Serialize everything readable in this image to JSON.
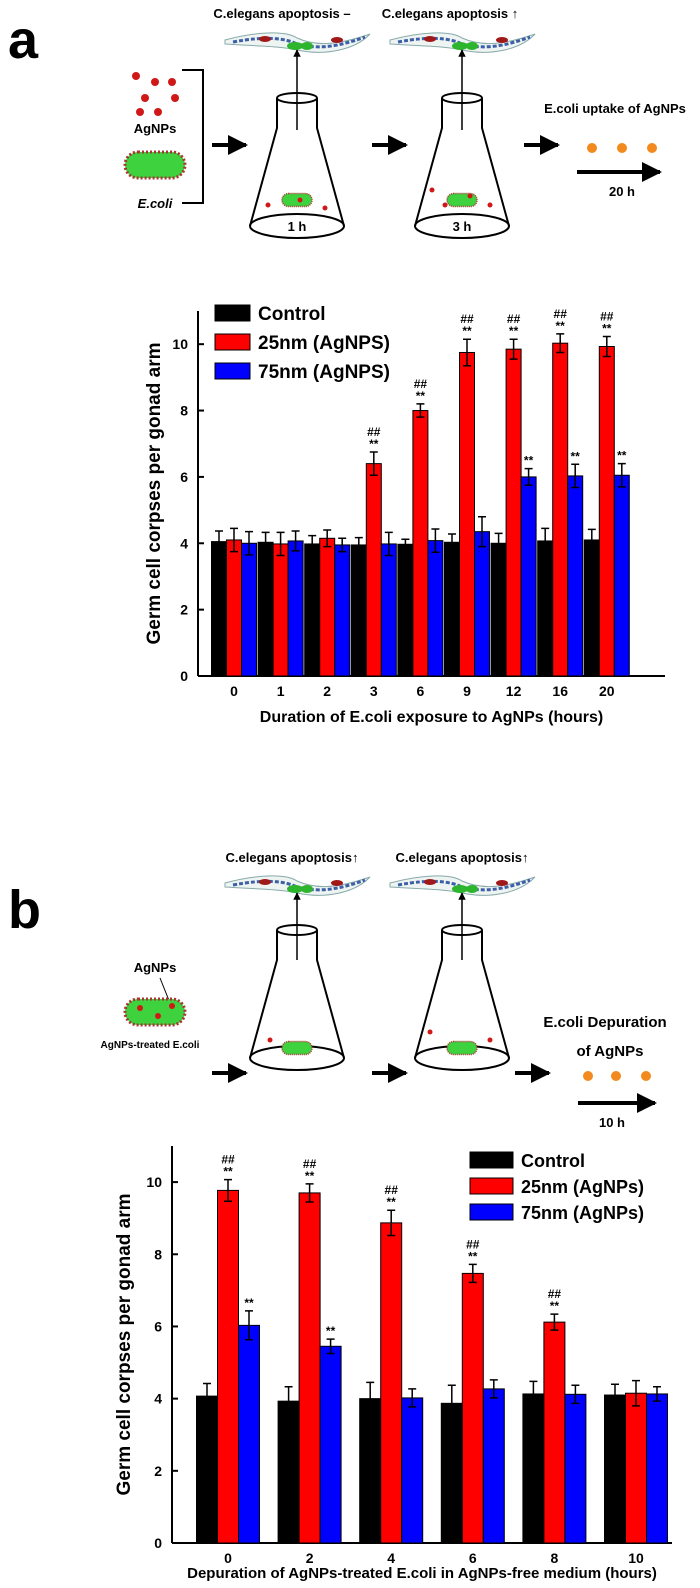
{
  "panel_a": {
    "label": "a",
    "apoptosis_1": "C.elegans apoptosis –",
    "apoptosis_2": "C.elegans apoptosis ↑",
    "agnps": "AgNPs",
    "ecoli": "E.coli",
    "time_1": "1 h",
    "time_2": "3 h",
    "uptake": "E.coli uptake of AgNPs",
    "duration": "20 h"
  },
  "panel_b": {
    "label": "b",
    "apoptosis_1": "C.elegans apoptosis↑",
    "apoptosis_2": "C.elegans apoptosis↑",
    "agnps": "AgNPs",
    "treated": "AgNPs-treated E.coli",
    "depuration_1": "E.coli Depuration",
    "depuration_2": "of AgNPs",
    "duration": "10 h"
  },
  "chart_data": [
    {
      "type": "bar",
      "ylabel": "Germ cell corpses per gonad arm",
      "xlabel": "Duration of E.coli exposure to AgNPs (hours)",
      "categories": [
        "0",
        "1",
        "2",
        "3",
        "6",
        "9",
        "12",
        "16",
        "20"
      ],
      "series": [
        {
          "name": "Control",
          "color": "#000000",
          "values": [
            4.05,
            4.03,
            3.98,
            3.95,
            3.97,
            4.03,
            4.0,
            4.07,
            4.1
          ],
          "errors": [
            0.32,
            0.3,
            0.25,
            0.22,
            0.15,
            0.25,
            0.3,
            0.38,
            0.32
          ],
          "annotations": [
            null,
            null,
            null,
            null,
            null,
            null,
            null,
            null,
            null
          ]
        },
        {
          "name": "25nm (AgNPS)",
          "color": "#ff0000",
          "values": [
            4.1,
            3.98,
            4.15,
            6.4,
            8.0,
            9.75,
            9.85,
            10.03,
            9.93
          ],
          "errors": [
            0.35,
            0.35,
            0.25,
            0.35,
            0.2,
            0.4,
            0.3,
            0.28,
            0.3
          ],
          "annotations": [
            null,
            null,
            null,
            [
              "##",
              "**"
            ],
            [
              "##",
              "**"
            ],
            [
              "##",
              "**"
            ],
            [
              "##",
              "**"
            ],
            [
              "##",
              "**"
            ],
            [
              "##",
              "**"
            ]
          ]
        },
        {
          "name": "75nm (AgNPS)",
          "color": "#0000ff",
          "values": [
            4.0,
            4.07,
            3.95,
            3.98,
            4.08,
            4.35,
            6.0,
            6.03,
            6.05
          ],
          "errors": [
            0.35,
            0.3,
            0.2,
            0.35,
            0.35,
            0.45,
            0.25,
            0.35,
            0.35
          ],
          "annotations": [
            null,
            null,
            null,
            null,
            null,
            null,
            [
              "**"
            ],
            [
              "**"
            ],
            [
              "**"
            ]
          ]
        }
      ],
      "ylim": [
        0,
        11
      ],
      "yticks": [
        0,
        2,
        4,
        6,
        8,
        10
      ],
      "legend": "top-left"
    },
    {
      "type": "bar",
      "ylabel": "Germ cell corpses per gonad arm",
      "xlabel": "Depuration of AgNPs-treated E.coli in AgNPs-free medium (hours)",
      "categories": [
        "0",
        "2",
        "4",
        "6",
        "8",
        "10"
      ],
      "series": [
        {
          "name": "Control",
          "color": "#000000",
          "values": [
            4.07,
            3.93,
            4.0,
            3.87,
            4.13,
            4.1
          ],
          "errors": [
            0.35,
            0.4,
            0.45,
            0.5,
            0.35,
            0.3
          ],
          "annotations": [
            null,
            null,
            null,
            null,
            null,
            null
          ]
        },
        {
          "name": "25nm (AgNPs)",
          "color": "#ff0000",
          "values": [
            9.77,
            9.7,
            8.87,
            7.47,
            6.12,
            4.15
          ],
          "errors": [
            0.3,
            0.25,
            0.35,
            0.25,
            0.22,
            0.35
          ],
          "annotations": [
            [
              "##",
              "**"
            ],
            [
              "##",
              "**"
            ],
            [
              "##",
              "**"
            ],
            [
              "##",
              "**"
            ],
            [
              "##",
              "**"
            ],
            null
          ]
        },
        {
          "name": "75nm (AgNPs)",
          "color": "#0000ff",
          "values": [
            6.03,
            5.45,
            4.02,
            4.27,
            4.12,
            4.13
          ],
          "errors": [
            0.4,
            0.2,
            0.25,
            0.25,
            0.25,
            0.2
          ],
          "annotations": [
            [
              "**"
            ],
            [
              "**"
            ],
            null,
            null,
            null,
            null
          ]
        }
      ],
      "ylim": [
        0,
        11
      ],
      "yticks": [
        0,
        2,
        4,
        6,
        8,
        10
      ],
      "legend": "top-right"
    }
  ]
}
